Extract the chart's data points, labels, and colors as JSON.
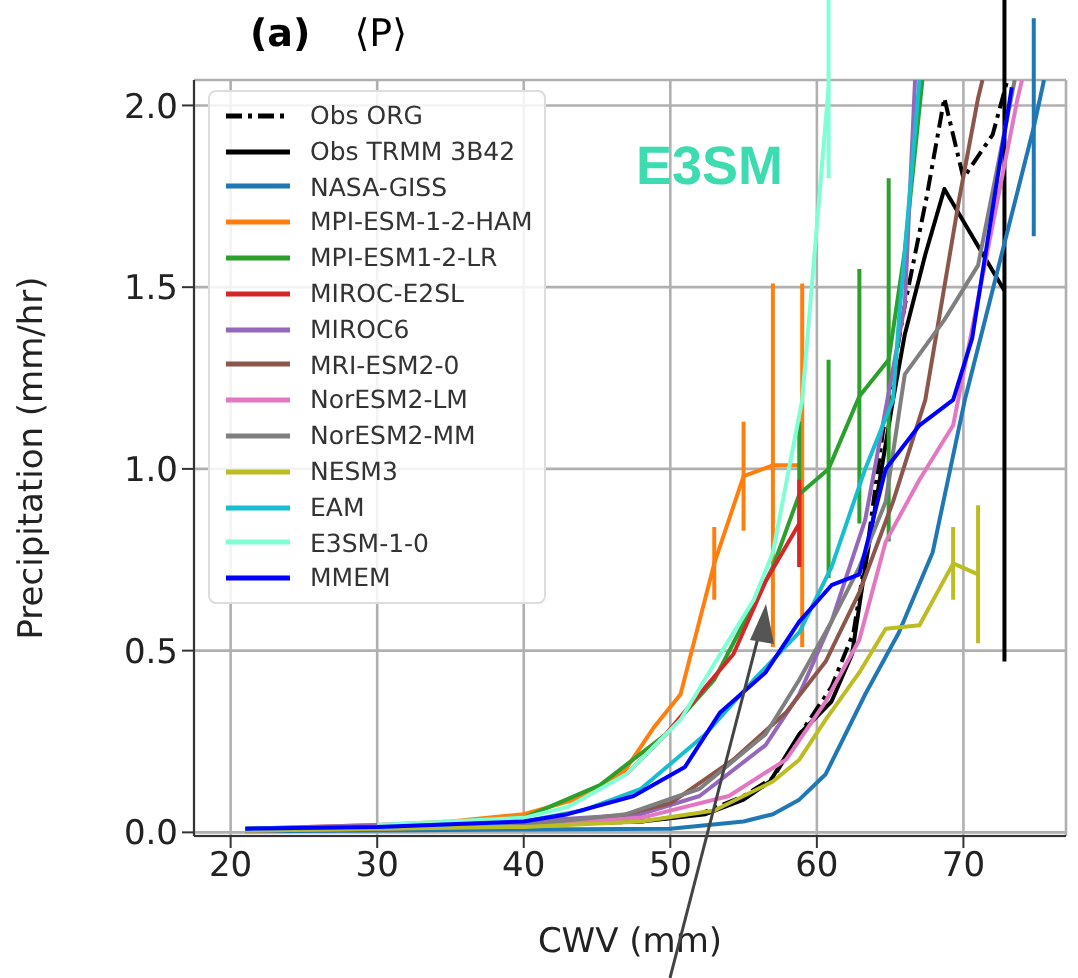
{
  "chart_data": {
    "type": "line",
    "title": "(a)",
    "subtitle": "⟨P⟩",
    "xlabel": "CWV (mm)",
    "ylabel": "Precipitation (mm/hr)",
    "annotations": [
      "E3SM"
    ],
    "xlim": [
      17.5,
      77
    ],
    "xticks": [
      20,
      30,
      40,
      50,
      60,
      70
    ],
    "ylim": [
      -0.01,
      2.07
    ],
    "yticks": [
      {
        "value": 0,
        "label": "0.0"
      },
      {
        "value": 0.5,
        "label": "0.5"
      },
      {
        "value": 1,
        "label": "1.0"
      },
      {
        "value": 1.5,
        "label": "1.5"
      },
      {
        "value": 2,
        "label": "2.0"
      }
    ],
    "grid": true,
    "legend": "top left",
    "series": [
      {
        "name": "Obs ORG",
        "color": "#000000",
        "line_style": "dashdot",
        "x": [
          21,
          30,
          40,
          48,
          52,
          55,
          57,
          59,
          61,
          62.5,
          63.5,
          64.5,
          66,
          67.5,
          68.7,
          70,
          72,
          73
        ],
        "values": [
          0.005,
          0.01,
          0.02,
          0.03,
          0.05,
          0.1,
          0.15,
          0.28,
          0.4,
          0.55,
          0.8,
          1.1,
          1.45,
          1.75,
          2.02,
          1.8,
          1.92,
          2.07
        ]
      },
      {
        "name": "Obs TRMM 3B42",
        "color": "#000000",
        "x": [
          21,
          30,
          40,
          48,
          52.4,
          55,
          56.8,
          58.8,
          61,
          62.4,
          63.3,
          65.2,
          66,
          67.4,
          68.7,
          72.8
        ],
        "values": [
          0.005,
          0.01,
          0.02,
          0.03,
          0.05,
          0.09,
          0.14,
          0.27,
          0.36,
          0.49,
          0.73,
          1.19,
          1.37,
          1.59,
          1.77,
          1.49
        ],
        "errors": [
          null,
          null,
          null,
          null,
          null,
          null,
          null,
          null,
          null,
          null,
          null,
          null,
          null,
          null,
          null,
          1.02
        ]
      },
      {
        "name": "NASA-GISS",
        "color": "#1f77b4",
        "x": [
          21,
          30,
          40,
          50,
          55,
          57,
          58.8,
          60.6,
          63.3,
          65.6,
          67.9,
          70.1,
          74.8,
          75.5
        ],
        "values": [
          0.003,
          0.005,
          0.008,
          0.01,
          0.03,
          0.05,
          0.09,
          0.16,
          0.38,
          0.55,
          0.77,
          1.19,
          1.94,
          2.07
        ],
        "errors": [
          null,
          null,
          null,
          null,
          null,
          null,
          null,
          null,
          null,
          null,
          null,
          null,
          0.3,
          null
        ]
      },
      {
        "name": "MPI-ESM-1-2-HAM",
        "color": "#ff7f0e",
        "x": [
          21,
          30,
          35,
          40,
          43.5,
          45,
          46.9,
          48.9,
          50.7,
          53,
          55,
          57,
          59
        ],
        "values": [
          0.01,
          0.02,
          0.03,
          0.05,
          0.09,
          0.12,
          0.17,
          0.29,
          0.38,
          0.74,
          0.98,
          1.01,
          1.01
        ],
        "errors": [
          null,
          null,
          null,
          null,
          null,
          null,
          null,
          null,
          null,
          0.1,
          0.15,
          0.5,
          0.5
        ]
      },
      {
        "name": "MPI-ESM1-2-LR",
        "color": "#2ca02c",
        "x": [
          21,
          30,
          40,
          45.2,
          49.7,
          53,
          57,
          58.8,
          60.8,
          62.9,
          64.9,
          66,
          67.2
        ],
        "values": [
          0.01,
          0.015,
          0.04,
          0.13,
          0.27,
          0.42,
          0.73,
          0.93,
          1.0,
          1.2,
          1.3,
          1.6,
          2.07
        ],
        "errors": [
          null,
          null,
          null,
          null,
          null,
          null,
          null,
          0.2,
          0.3,
          0.35,
          0.5,
          null,
          null
        ]
      },
      {
        "name": "MIROC-E2SL",
        "color": "#d62728",
        "x": [
          47,
          49.7,
          52.4,
          54.3,
          56.5,
          58.8
        ],
        "values": [
          0.16,
          0.27,
          0.4,
          0.49,
          0.69,
          0.85
        ],
        "errors": [
          null,
          null,
          null,
          null,
          null,
          0.12
        ]
      },
      {
        "name": "MIROC6",
        "color": "#9467bd",
        "x": [
          21,
          30,
          40,
          48,
          52,
          56.5,
          58.8,
          61,
          63.3,
          66,
          66.7
        ],
        "values": [
          0.01,
          0.02,
          0.03,
          0.05,
          0.1,
          0.24,
          0.38,
          0.58,
          0.86,
          1.45,
          2.07
        ]
      },
      {
        "name": "MRI-ESM2-0",
        "color": "#8c564b",
        "x": [
          21,
          30,
          40,
          46,
          50,
          54.3,
          57.9,
          60.6,
          62.9,
          65.2,
          67.4,
          69.7,
          71,
          71.3
        ],
        "values": [
          0.005,
          0.01,
          0.02,
          0.04,
          0.08,
          0.2,
          0.33,
          0.47,
          0.66,
          0.91,
          1.19,
          1.74,
          2.02,
          2.07
        ]
      },
      {
        "name": "NorESM2-LM",
        "color": "#e377c2",
        "x": [
          21,
          30,
          40,
          48,
          54,
          57.9,
          60.6,
          62.9,
          64.7,
          67,
          69.3,
          73.7,
          74
        ],
        "values": [
          0.005,
          0.01,
          0.02,
          0.04,
          0.1,
          0.2,
          0.36,
          0.53,
          0.8,
          0.97,
          1.12,
          2.02,
          2.07
        ]
      },
      {
        "name": "NorESM2-MM",
        "color": "#7f7f7f",
        "x": [
          21,
          30,
          40,
          47,
          52,
          56.5,
          58.8,
          61,
          62.9,
          64.7,
          66,
          68.7,
          71,
          73.5
        ],
        "values": [
          0.005,
          0.01,
          0.02,
          0.05,
          0.12,
          0.27,
          0.42,
          0.58,
          0.73,
          0.91,
          1.26,
          1.41,
          1.56,
          2.07
        ]
      },
      {
        "name": "NESM3",
        "color": "#bcbd22",
        "x": [
          21,
          30,
          40,
          48,
          53,
          57,
          58.8,
          60.6,
          62.9,
          64.7,
          67,
          69.3,
          71
        ],
        "values": [
          0.005,
          0.01,
          0.015,
          0.03,
          0.06,
          0.14,
          0.2,
          0.31,
          0.44,
          0.56,
          0.57,
          0.74,
          0.71
        ],
        "errors": [
          null,
          null,
          null,
          null,
          null,
          null,
          null,
          null,
          null,
          null,
          null,
          0.1,
          0.19
        ]
      },
      {
        "name": "EAM",
        "color": "#17becf",
        "x": [
          21,
          30,
          40,
          44,
          48,
          52.4,
          55.7,
          58.8,
          61,
          63.3,
          65.2,
          65.6,
          67
        ],
        "values": [
          0.01,
          0.015,
          0.03,
          0.06,
          0.12,
          0.27,
          0.42,
          0.55,
          0.73,
          1.0,
          1.19,
          1.41,
          2.07
        ]
      },
      {
        "name": "E3SM-1-0",
        "color": "#7fffd4",
        "x": [
          30,
          40,
          43,
          47,
          50.7,
          53.4,
          55.7,
          57,
          59,
          60.8
        ],
        "values": [
          0.02,
          0.04,
          0.07,
          0.16,
          0.31,
          0.49,
          0.64,
          0.77,
          1.19,
          2.05
        ],
        "errors": [
          null,
          null,
          null,
          null,
          null,
          null,
          null,
          null,
          null,
          0.25
        ]
      },
      {
        "name": "MMEM",
        "color": "#0000ff",
        "x": [
          21,
          30,
          40,
          43,
          47.5,
          51,
          53.4,
          56.5,
          58.8,
          61,
          62.9,
          64.7,
          67,
          69.3,
          70.6,
          73.3
        ],
        "values": [
          0.01,
          0.015,
          0.03,
          0.05,
          0.1,
          0.18,
          0.33,
          0.44,
          0.58,
          0.68,
          0.71,
          1.0,
          1.12,
          1.19,
          1.36,
          2.05
        ]
      }
    ]
  }
}
